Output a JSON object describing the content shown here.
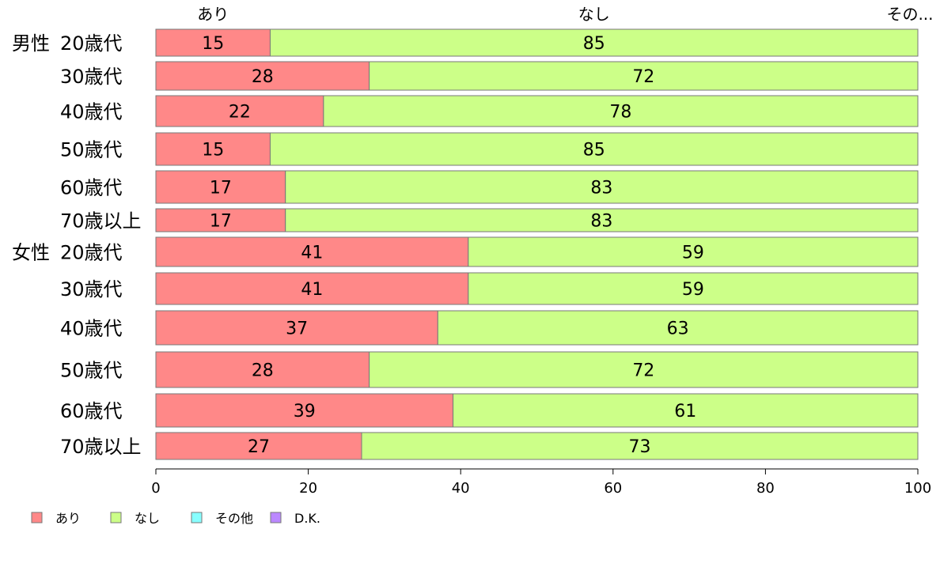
{
  "chart_data": {
    "type": "bar",
    "orientation": "horizontal",
    "stacked": true,
    "xlim": [
      0,
      100
    ],
    "x_ticks": [
      "0",
      "20",
      "40",
      "60",
      "80",
      "100"
    ],
    "top_labels": [
      "あり",
      "なし",
      "その..."
    ],
    "groups": [
      {
        "label": "男性",
        "rows": [
          "20歳代",
          "30歳代",
          "40歳代",
          "50歳代",
          "60歳代",
          "70歳以上"
        ]
      },
      {
        "label": "女性",
        "rows": [
          "20歳代",
          "30歳代",
          "40歳代",
          "50歳代",
          "60歳代",
          "70歳以上"
        ]
      }
    ],
    "series": [
      {
        "name": "あり",
        "color": "#ff8888",
        "values": [
          15,
          28,
          22,
          15,
          17,
          17,
          41,
          41,
          37,
          28,
          39,
          27
        ]
      },
      {
        "name": "なし",
        "color": "#ccff88",
        "values": [
          85,
          72,
          78,
          85,
          83,
          83,
          59,
          59,
          63,
          72,
          61,
          73
        ]
      },
      {
        "name": "その他",
        "color": "#88ffff",
        "values": [
          0,
          0,
          0,
          0,
          0,
          0,
          0,
          0,
          0,
          0,
          0,
          0
        ]
      },
      {
        "name": "D.K.",
        "color": "#bb88ff",
        "values": [
          0,
          0,
          0,
          0,
          0,
          0,
          0,
          0,
          0,
          0,
          0,
          0
        ]
      }
    ]
  }
}
